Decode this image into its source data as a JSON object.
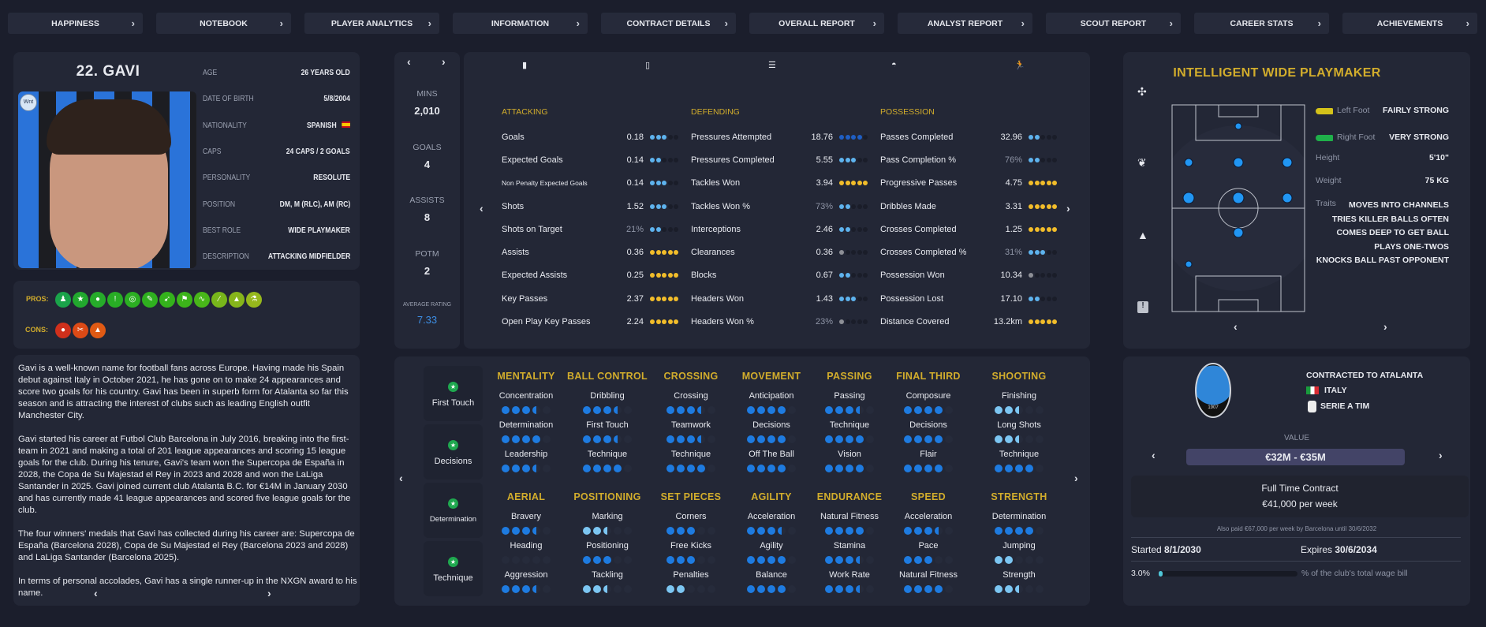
{
  "nav": [
    "HAPPINESS",
    "NOTEBOOK",
    "PLAYER ANALYTICS",
    "INFORMATION",
    "CONTRACT DETAILS",
    "OVERALL REPORT",
    "ANALYST REPORT",
    "SCOUT REPORT",
    "CAREER STATS",
    "ACHIEVEMENTS"
  ],
  "profile": {
    "name": "22. GAVI",
    "badge": "Wnt",
    "info": [
      {
        "label": "AGE",
        "value": "26 YEARS OLD"
      },
      {
        "label": "DATE OF BIRTH",
        "value": "5/8/2004"
      },
      {
        "label": "NATIONALITY",
        "value": "SPANISH",
        "flag": "spain"
      },
      {
        "label": "CAPS",
        "value": "24 CAPS / 2 GOALS"
      },
      {
        "label": "PERSONALITY",
        "value": "RESOLUTE"
      },
      {
        "label": "POSITION",
        "value": "DM, M (RLC), AM (RC)"
      },
      {
        "label": "BEST ROLE",
        "value": "WIDE PLAYMAKER"
      },
      {
        "label": "DESCRIPTION",
        "value": "ATTACKING MIDFIELDER"
      }
    ]
  },
  "pros": {
    "label": "PROS:",
    "colors": [
      "#1aa34a",
      "#22a82e",
      "#26ab2a",
      "#28ad25",
      "#2bae22",
      "#2fb01f",
      "#34b21c",
      "#3cb41a",
      "#48b619",
      "#78b61b",
      "#86b51b",
      "#96b81c"
    ]
  },
  "cons": {
    "label": "CONS:",
    "colors": [
      "#d0301c",
      "#dc4a16",
      "#e05a14"
    ]
  },
  "bio": [
    "Gavi is a well-known name for football fans across Europe. Having made his Spain debut against Italy in October 2021, he has gone on to make 24 appearances and score two goals for his country. Gavi has been in superb form for Atalanta so far this season and is attracting the interest of clubs such as leading English outfit Manchester City.",
    "Gavi started his career at Futbol Club Barcelona in July 2016, breaking into the first-team in 2021 and making a total of 201 league appearances and scoring 15 league goals for the club. During his tenure, Gavi's team won the Supercopa de España in 2028, the Copa de Su Majestad el Rey in 2023 and 2028 and won the LaLiga Santander in 2025. Gavi joined current club Atalanta B.C. for €14M in January 2030 and has currently made 41 league appearances and scored five league goals for the club.",
    "The four winners' medals that Gavi has collected during his career are: Supercopa de España (Barcelona 2028), Copa de Su Majestad el Rey (Barcelona 2023 and 2028) and LaLiga Santander (Barcelona 2025).",
    "In terms of personal accolades, Gavi has a single runner-up in the NXGN award to his name."
  ],
  "summary": [
    {
      "label": "MINS",
      "value": "2,010"
    },
    {
      "label": "GOALS",
      "value": "4"
    },
    {
      "label": "ASSISTS",
      "value": "8"
    },
    {
      "label": "POTM",
      "value": "2"
    },
    {
      "label": "AVERAGE RATING",
      "value": "7.33"
    }
  ],
  "stat_tabs": [
    "bar-chart-icon",
    "kit-icon",
    "list-icon",
    "helmet-icon",
    "running-icon"
  ],
  "stats": [
    {
      "title": "ATTACKING",
      "rows": [
        {
          "name": "Goals",
          "value": "0.18",
          "dots": 3,
          "tier": "blue"
        },
        {
          "name": "Expected Goals",
          "value": "0.14",
          "dots": 2,
          "tier": "blue"
        },
        {
          "name": "Non Penalty Expected Goals",
          "value": "0.14",
          "dots": 3,
          "tier": "blue",
          "small": true
        },
        {
          "name": "Shots",
          "value": "1.52",
          "dots": 3,
          "tier": "blue"
        },
        {
          "name": "Shots on Target",
          "value": "21%",
          "dots": 2,
          "tier": "blue",
          "pct": true
        },
        {
          "name": "Assists",
          "value": "0.36",
          "dots": 5,
          "tier": "gold"
        },
        {
          "name": "Expected Assists",
          "value": "0.25",
          "dots": 5,
          "tier": "gold"
        },
        {
          "name": "Key Passes",
          "value": "2.37",
          "dots": 5,
          "tier": "gold"
        },
        {
          "name": "Open Play Key Passes",
          "value": "2.24",
          "dots": 5,
          "tier": "gold"
        }
      ]
    },
    {
      "title": "DEFENDING",
      "rows": [
        {
          "name": "Pressures Attempted",
          "value": "18.76",
          "dots": 4,
          "tier": "dark"
        },
        {
          "name": "Pressures Completed",
          "value": "5.55",
          "dots": 3,
          "tier": "blue"
        },
        {
          "name": "Tackles Won",
          "value": "3.94",
          "dots": 5,
          "tier": "gold"
        },
        {
          "name": "Tackles Won %",
          "value": "73%",
          "dots": 2,
          "tier": "blue",
          "pct": true
        },
        {
          "name": "Interceptions",
          "value": "2.46",
          "dots": 2,
          "tier": "blue"
        },
        {
          "name": "Clearances",
          "value": "0.36",
          "dots": 1,
          "tier": "gray"
        },
        {
          "name": "Blocks",
          "value": "0.67",
          "dots": 2,
          "tier": "blue"
        },
        {
          "name": "Headers Won",
          "value": "1.43",
          "dots": 3,
          "tier": "blue"
        },
        {
          "name": "Headers Won %",
          "value": "23%",
          "dots": 1,
          "tier": "gray",
          "pct": true
        }
      ]
    },
    {
      "title": "POSSESSION",
      "rows": [
        {
          "name": "Passes Completed",
          "value": "32.96",
          "dots": 2,
          "tier": "blue"
        },
        {
          "name": "Pass Completion %",
          "value": "76%",
          "dots": 2,
          "tier": "blue",
          "pct": true
        },
        {
          "name": "Progressive Passes",
          "value": "4.75",
          "dots": 5,
          "tier": "gold"
        },
        {
          "name": "Dribbles Made",
          "value": "3.31",
          "dots": 5,
          "tier": "gold"
        },
        {
          "name": "Crosses Completed",
          "value": "1.25",
          "dots": 5,
          "tier": "gold"
        },
        {
          "name": "Crosses Completed %",
          "value": "31%",
          "dots": 3,
          "tier": "blue",
          "pct": true
        },
        {
          "name": "Possession Won",
          "value": "10.34",
          "dots": 1,
          "tier": "gray"
        },
        {
          "name": "Possession Lost",
          "value": "17.10",
          "dots": 2,
          "tier": "blue"
        },
        {
          "name": "Distance Covered",
          "value": "13.2km",
          "dots": 5,
          "tier": "gold"
        }
      ]
    }
  ],
  "key_attributes": [
    "First Touch",
    "Decisions",
    "Determination",
    "Technique"
  ],
  "attributes": [
    {
      "title": "MENTALITY",
      "items": [
        [
          "Concentration",
          3.5
        ],
        [
          "Determination",
          4
        ],
        [
          "Leadership",
          3.5
        ]
      ]
    },
    {
      "title": "BALL CONTROL",
      "items": [
        [
          "Dribbling",
          3.5
        ],
        [
          "First Touch",
          3.5
        ],
        [
          "Technique",
          4
        ]
      ]
    },
    {
      "title": "CROSSING",
      "items": [
        [
          "Crossing",
          3.5
        ],
        [
          "Teamwork",
          3.5
        ],
        [
          "Technique",
          4
        ]
      ]
    },
    {
      "title": "MOVEMENT",
      "items": [
        [
          "Anticipation",
          4
        ],
        [
          "Decisions",
          4
        ],
        [
          "Off The Ball",
          4
        ]
      ]
    },
    {
      "title": "PASSING",
      "items": [
        [
          "Passing",
          3.5
        ],
        [
          "Technique",
          4
        ],
        [
          "Vision",
          4
        ]
      ]
    },
    {
      "title": "FINAL THIRD",
      "items": [
        [
          "Composure",
          4
        ],
        [
          "Decisions",
          4
        ],
        [
          "Flair",
          4
        ]
      ]
    },
    {
      "title": "SHOOTING",
      "items": [
        [
          "Finishing",
          2.5
        ],
        [
          "Long Shots",
          2.5
        ],
        [
          "Technique",
          4
        ]
      ]
    },
    {
      "title": "AERIAL",
      "items": [
        [
          "Bravery",
          3.5
        ],
        [
          "Heading",
          0
        ],
        [
          "Aggression",
          3.5
        ]
      ]
    },
    {
      "title": "POSITIONING",
      "items": [
        [
          "Marking",
          2.5
        ],
        [
          "Positioning",
          3
        ],
        [
          "Tackling",
          2.5
        ]
      ]
    },
    {
      "title": "SET PIECES",
      "items": [
        [
          "Corners",
          3
        ],
        [
          "Free Kicks",
          3
        ],
        [
          "Penalties",
          2
        ]
      ]
    },
    {
      "title": "AGILITY",
      "items": [
        [
          "Acceleration",
          3.5
        ],
        [
          "Agility",
          4
        ],
        [
          "Balance",
          4
        ]
      ]
    },
    {
      "title": "ENDURANCE",
      "items": [
        [
          "Natural Fitness",
          4
        ],
        [
          "Stamina",
          3.5
        ],
        [
          "Work Rate",
          3.5
        ]
      ]
    },
    {
      "title": "SPEED",
      "items": [
        [
          "Acceleration",
          3.5
        ],
        [
          "Pace",
          3
        ],
        [
          "Natural Fitness",
          4
        ]
      ]
    },
    {
      "title": "STRENGTH",
      "items": [
        [
          "Determination",
          4
        ],
        [
          "Jumping",
          2
        ],
        [
          "Strength",
          2.5
        ]
      ]
    }
  ],
  "role": {
    "title": "INTELLIGENT WIDE PLAYMAKER",
    "left_foot_label": "Left Foot",
    "left_foot": "FAIRLY STRONG",
    "right_foot_label": "Right Foot",
    "right_foot": "VERY STRONG",
    "height_label": "Height",
    "height": "5'10\"",
    "weight_label": "Weight",
    "weight": "75 KG",
    "traits_label": "Traits",
    "traits": [
      "MOVES INTO CHANNELS",
      "TRIES KILLER BALLS OFTEN",
      "COMES DEEP TO GET BALL",
      "PLAYS ONE-TWOS",
      "KNOCKS BALL PAST OPPONENT"
    ]
  },
  "contract": {
    "club": "CONTRACTED TO ATALANTA",
    "club_badge": "1907",
    "nation": "ITALY",
    "league": "SERIE A TIM",
    "value_label": "VALUE",
    "value": "€32M - €35M",
    "type": "Full Time Contract",
    "wage": "€41,000 per week",
    "also_paid": "Also paid €67,000 per week by Barcelona until 30/6/2032",
    "started_label": "Started",
    "started": "8/1/2030",
    "expires_label": "Expires",
    "expires": "30/6/2034",
    "wage_pct": "3.0%",
    "wage_pct_value": 3.0,
    "wage_text": "% of the club's total wage bill"
  },
  "colors": {
    "gold": "#d2ad2c",
    "blue": "#1e7be0",
    "light_blue": "#7cc6f2",
    "panel": "#232736",
    "background": "#1b1e2c"
  }
}
